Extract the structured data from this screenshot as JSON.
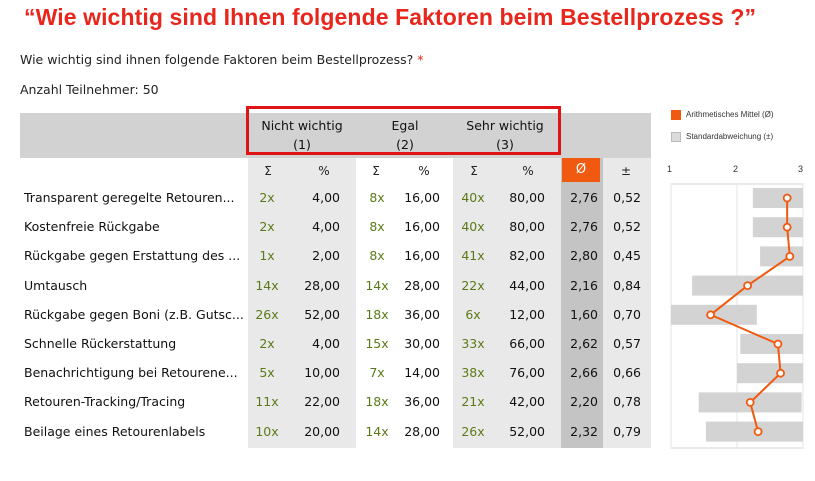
{
  "title": "“Wie wichtig sind Ihnen folgende Faktoren beim Bestellprozess ?”",
  "question": {
    "text": "Wie wichtig sind ihnen folgende Faktoren beim Bestellprozess?",
    "required_mark": "*"
  },
  "participants": "Anzahl Teilnehmer: 50",
  "categories": [
    {
      "label": "Nicht wichtig",
      "code": "(1)"
    },
    {
      "label": "Egal",
      "code": "(2)"
    },
    {
      "label": "Sehr wichtig",
      "code": "(3)"
    }
  ],
  "subheaders": {
    "sum": "Σ",
    "pct": "%",
    "mean": "Ø",
    "sd": "±"
  },
  "legend": {
    "mean": "Arithmetisches Mittel (Ø)",
    "sd": "Standardabweichung (±)"
  },
  "colors": {
    "accent": "#f05a10",
    "title_red": "#e8261c",
    "count_green": "#5b7a17"
  },
  "chart_data": {
    "type": "table",
    "axis_ticks": [
      "1",
      "2",
      "3"
    ],
    "xlim": [
      1,
      3
    ],
    "rows": [
      {
        "label": "Transparent geregelte Retouren...",
        "c1": "2x",
        "p1": "4,00",
        "c2": "8x",
        "p2": "16,00",
        "c3": "40x",
        "p3": "80,00",
        "mean": "2,76",
        "sd": "0,52",
        "mean_val": 2.76,
        "sd_val": 0.52
      },
      {
        "label": "Kostenfreie Rückgabe",
        "c1": "2x",
        "p1": "4,00",
        "c2": "8x",
        "p2": "16,00",
        "c3": "40x",
        "p3": "80,00",
        "mean": "2,76",
        "sd": "0,52",
        "mean_val": 2.76,
        "sd_val": 0.52
      },
      {
        "label": "Rückgabe gegen Erstattung des ...",
        "c1": "1x",
        "p1": "2,00",
        "c2": "8x",
        "p2": "16,00",
        "c3": "41x",
        "p3": "82,00",
        "mean": "2,80",
        "sd": "0,45",
        "mean_val": 2.8,
        "sd_val": 0.45
      },
      {
        "label": "Umtausch",
        "c1": "14x",
        "p1": "28,00",
        "c2": "14x",
        "p2": "28,00",
        "c3": "22x",
        "p3": "44,00",
        "mean": "2,16",
        "sd": "0,84",
        "mean_val": 2.16,
        "sd_val": 0.84
      },
      {
        "label": "Rückgabe gegen Boni (z.B. Gutsc...",
        "c1": "26x",
        "p1": "52,00",
        "c2": "18x",
        "p2": "36,00",
        "c3": "6x",
        "p3": "12,00",
        "mean": "1,60",
        "sd": "0,70",
        "mean_val": 1.6,
        "sd_val": 0.7
      },
      {
        "label": "Schnelle Rückerstattung",
        "c1": "2x",
        "p1": "4,00",
        "c2": "15x",
        "p2": "30,00",
        "c3": "33x",
        "p3": "66,00",
        "mean": "2,62",
        "sd": "0,57",
        "mean_val": 2.62,
        "sd_val": 0.57
      },
      {
        "label": "Benachrichtigung bei Retourene...",
        "c1": "5x",
        "p1": "10,00",
        "c2": "7x",
        "p2": "14,00",
        "c3": "38x",
        "p3": "76,00",
        "mean": "2,66",
        "sd": "0,66",
        "mean_val": 2.66,
        "sd_val": 0.66
      },
      {
        "label": "Retouren-Tracking/Tracing",
        "c1": "11x",
        "p1": "22,00",
        "c2": "18x",
        "p2": "36,00",
        "c3": "21x",
        "p3": "42,00",
        "mean": "2,20",
        "sd": "0,78",
        "mean_val": 2.2,
        "sd_val": 0.78
      },
      {
        "label": "Beilage eines Retourenlabels",
        "c1": "10x",
        "p1": "20,00",
        "c2": "14x",
        "p2": "28,00",
        "c3": "26x",
        "p3": "52,00",
        "mean": "2,32",
        "sd": "0,79",
        "mean_val": 2.32,
        "sd_val": 0.79
      }
    ]
  }
}
